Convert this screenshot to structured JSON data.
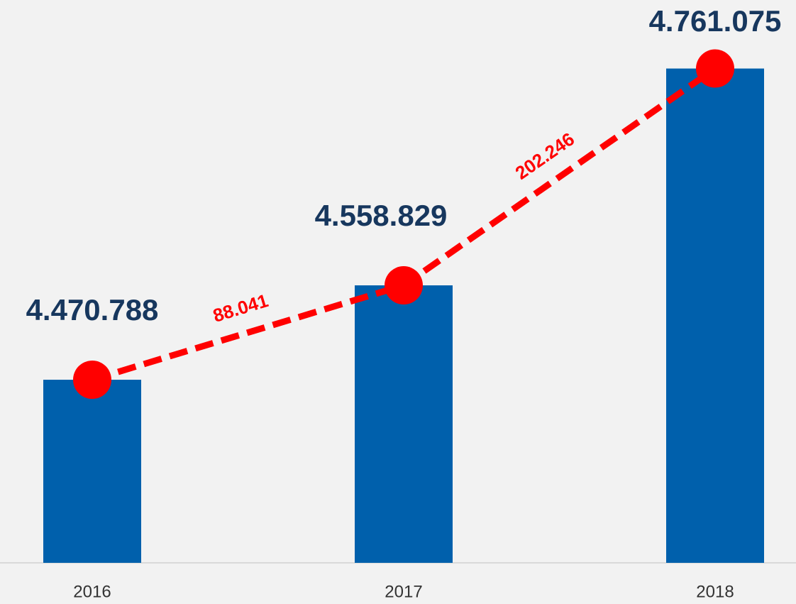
{
  "chart_data": {
    "type": "bar",
    "categories": [
      "2016",
      "2017",
      "2018"
    ],
    "values": [
      4470788,
      4558829,
      4761075
    ],
    "value_labels": [
      "4.470.788",
      "4.558.829",
      "4.761.075"
    ],
    "color": "#0060ac",
    "line_color": "#ff0000",
    "label_color": "#17375e",
    "annotations": [
      "88.041",
      "202.246"
    ],
    "ylim": [
      4300000,
      4825000
    ]
  }
}
